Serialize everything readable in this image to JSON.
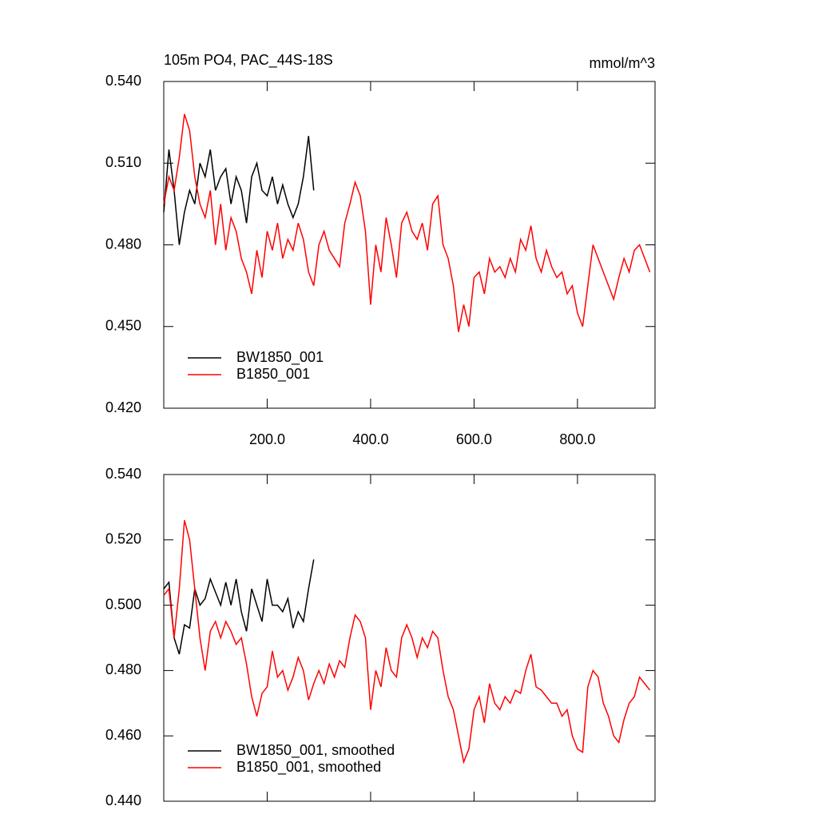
{
  "chart_data": [
    {
      "type": "line",
      "title": "105m PO4, PAC_44S-18S",
      "units": "mmol/m^3",
      "xlim": [
        0,
        950
      ],
      "ylim": [
        0.42,
        0.54
      ],
      "xticks": [
        {
          "value": 200,
          "label": "200.0"
        },
        {
          "value": 400,
          "label": "400.0"
        },
        {
          "value": 600,
          "label": "600.0"
        },
        {
          "value": 800,
          "label": "800.0"
        }
      ],
      "xtick_labels": true,
      "yticks": [
        {
          "value": 0.42,
          "label": "0.420"
        },
        {
          "value": 0.45,
          "label": "0.450"
        },
        {
          "value": 0.48,
          "label": "0.480"
        },
        {
          "value": 0.51,
          "label": "0.510"
        },
        {
          "value": 0.54,
          "label": "0.540"
        }
      ],
      "legend": "lower left",
      "series": [
        {
          "name": "BW1850_001",
          "color": "#000000",
          "x": [
            0,
            10,
            20,
            30,
            40,
            50,
            60,
            70,
            80,
            90,
            100,
            110,
            120,
            130,
            140,
            150,
            160,
            170,
            180,
            190,
            200,
            210,
            220,
            230,
            240,
            250,
            260,
            270,
            280,
            290
          ],
          "values": [
            0.492,
            0.515,
            0.5,
            0.48,
            0.492,
            0.5,
            0.495,
            0.51,
            0.505,
            0.515,
            0.5,
            0.505,
            0.508,
            0.495,
            0.505,
            0.5,
            0.488,
            0.505,
            0.51,
            0.5,
            0.498,
            0.505,
            0.495,
            0.502,
            0.495,
            0.49,
            0.495,
            0.505,
            0.52,
            0.5
          ]
        },
        {
          "name": "B1850_001",
          "color": "#ff0000",
          "x": [
            0,
            10,
            20,
            30,
            40,
            50,
            60,
            70,
            80,
            90,
            100,
            110,
            120,
            130,
            140,
            150,
            160,
            170,
            180,
            190,
            200,
            210,
            220,
            230,
            240,
            250,
            260,
            270,
            280,
            290,
            300,
            310,
            320,
            330,
            340,
            350,
            360,
            370,
            380,
            390,
            400,
            410,
            420,
            430,
            440,
            450,
            460,
            470,
            480,
            490,
            500,
            510,
            520,
            530,
            540,
            550,
            560,
            570,
            580,
            590,
            600,
            610,
            620,
            630,
            640,
            650,
            660,
            670,
            680,
            690,
            700,
            710,
            720,
            730,
            740,
            750,
            760,
            770,
            780,
            790,
            800,
            810,
            820,
            830,
            840,
            850,
            860,
            870,
            880,
            890,
            900,
            910,
            920,
            930,
            940
          ],
          "values": [
            0.495,
            0.505,
            0.5,
            0.512,
            0.528,
            0.522,
            0.505,
            0.495,
            0.49,
            0.5,
            0.48,
            0.495,
            0.478,
            0.49,
            0.485,
            0.475,
            0.47,
            0.462,
            0.478,
            0.468,
            0.485,
            0.478,
            0.488,
            0.475,
            0.482,
            0.478,
            0.488,
            0.482,
            0.47,
            0.465,
            0.48,
            0.485,
            0.478,
            0.475,
            0.472,
            0.488,
            0.495,
            0.503,
            0.498,
            0.485,
            0.458,
            0.48,
            0.47,
            0.49,
            0.48,
            0.468,
            0.488,
            0.492,
            0.485,
            0.482,
            0.488,
            0.478,
            0.495,
            0.498,
            0.48,
            0.475,
            0.465,
            0.448,
            0.458,
            0.45,
            0.468,
            0.47,
            0.462,
            0.475,
            0.47,
            0.472,
            0.468,
            0.475,
            0.47,
            0.482,
            0.478,
            0.487,
            0.475,
            0.47,
            0.478,
            0.472,
            0.468,
            0.47,
            0.462,
            0.465,
            0.455,
            0.45,
            0.465,
            0.48,
            0.475,
            0.47,
            0.465,
            0.46,
            0.468,
            0.475,
            0.47,
            0.478,
            0.48,
            0.475,
            0.47
          ]
        }
      ]
    },
    {
      "type": "line",
      "xlim": [
        0,
        950
      ],
      "ylim": [
        0.44,
        0.54
      ],
      "xticks": [
        200,
        400,
        600,
        800
      ],
      "xtick_labels": false,
      "yticks": [
        {
          "value": 0.44,
          "label": "0.440"
        },
        {
          "value": 0.46,
          "label": "0.460"
        },
        {
          "value": 0.48,
          "label": "0.480"
        },
        {
          "value": 0.5,
          "label": "0.500"
        },
        {
          "value": 0.52,
          "label": "0.520"
        },
        {
          "value": 0.54,
          "label": "0.540"
        }
      ],
      "legend": "lower left",
      "series": [
        {
          "name": "BW1850_001, smoothed",
          "color": "#000000",
          "x": [
            0,
            10,
            20,
            30,
            40,
            50,
            60,
            70,
            80,
            90,
            100,
            110,
            120,
            130,
            140,
            150,
            160,
            170,
            180,
            190,
            200,
            210,
            220,
            230,
            240,
            250,
            260,
            270,
            280,
            290
          ],
          "values": [
            0.505,
            0.507,
            0.49,
            0.485,
            0.494,
            0.493,
            0.505,
            0.5,
            0.502,
            0.508,
            0.504,
            0.5,
            0.507,
            0.5,
            0.508,
            0.498,
            0.492,
            0.505,
            0.5,
            0.495,
            0.508,
            0.5,
            0.5,
            0.498,
            0.502,
            0.493,
            0.498,
            0.495,
            0.505,
            0.514
          ]
        },
        {
          "name": "B1850_001, smoothed",
          "color": "#ff0000",
          "x": [
            0,
            10,
            20,
            30,
            40,
            50,
            60,
            70,
            80,
            90,
            100,
            110,
            120,
            130,
            140,
            150,
            160,
            170,
            180,
            190,
            200,
            210,
            220,
            230,
            240,
            250,
            260,
            270,
            280,
            290,
            300,
            310,
            320,
            330,
            340,
            350,
            360,
            370,
            380,
            390,
            400,
            410,
            420,
            430,
            440,
            450,
            460,
            470,
            480,
            490,
            500,
            510,
            520,
            530,
            540,
            550,
            560,
            570,
            580,
            590,
            600,
            610,
            620,
            630,
            640,
            650,
            660,
            670,
            680,
            690,
            700,
            710,
            720,
            730,
            740,
            750,
            760,
            770,
            780,
            790,
            800,
            810,
            820,
            830,
            840,
            850,
            860,
            870,
            880,
            890,
            900,
            910,
            920,
            930,
            940
          ],
          "values": [
            0.503,
            0.505,
            0.49,
            0.505,
            0.526,
            0.52,
            0.505,
            0.49,
            0.48,
            0.492,
            0.495,
            0.49,
            0.495,
            0.492,
            0.488,
            0.49,
            0.482,
            0.472,
            0.466,
            0.473,
            0.475,
            0.486,
            0.478,
            0.48,
            0.474,
            0.478,
            0.484,
            0.48,
            0.471,
            0.476,
            0.48,
            0.476,
            0.482,
            0.478,
            0.483,
            0.481,
            0.49,
            0.497,
            0.495,
            0.49,
            0.468,
            0.48,
            0.475,
            0.487,
            0.48,
            0.478,
            0.49,
            0.494,
            0.49,
            0.484,
            0.49,
            0.487,
            0.492,
            0.49,
            0.48,
            0.472,
            0.468,
            0.46,
            0.452,
            0.456,
            0.468,
            0.472,
            0.464,
            0.476,
            0.47,
            0.468,
            0.472,
            0.47,
            0.474,
            0.473,
            0.48,
            0.485,
            0.475,
            0.474,
            0.472,
            0.47,
            0.47,
            0.466,
            0.468,
            0.46,
            0.456,
            0.455,
            0.475,
            0.48,
            0.478,
            0.47,
            0.466,
            0.46,
            0.458,
            0.465,
            0.47,
            0.472,
            0.478,
            0.476,
            0.474
          ]
        }
      ]
    }
  ]
}
